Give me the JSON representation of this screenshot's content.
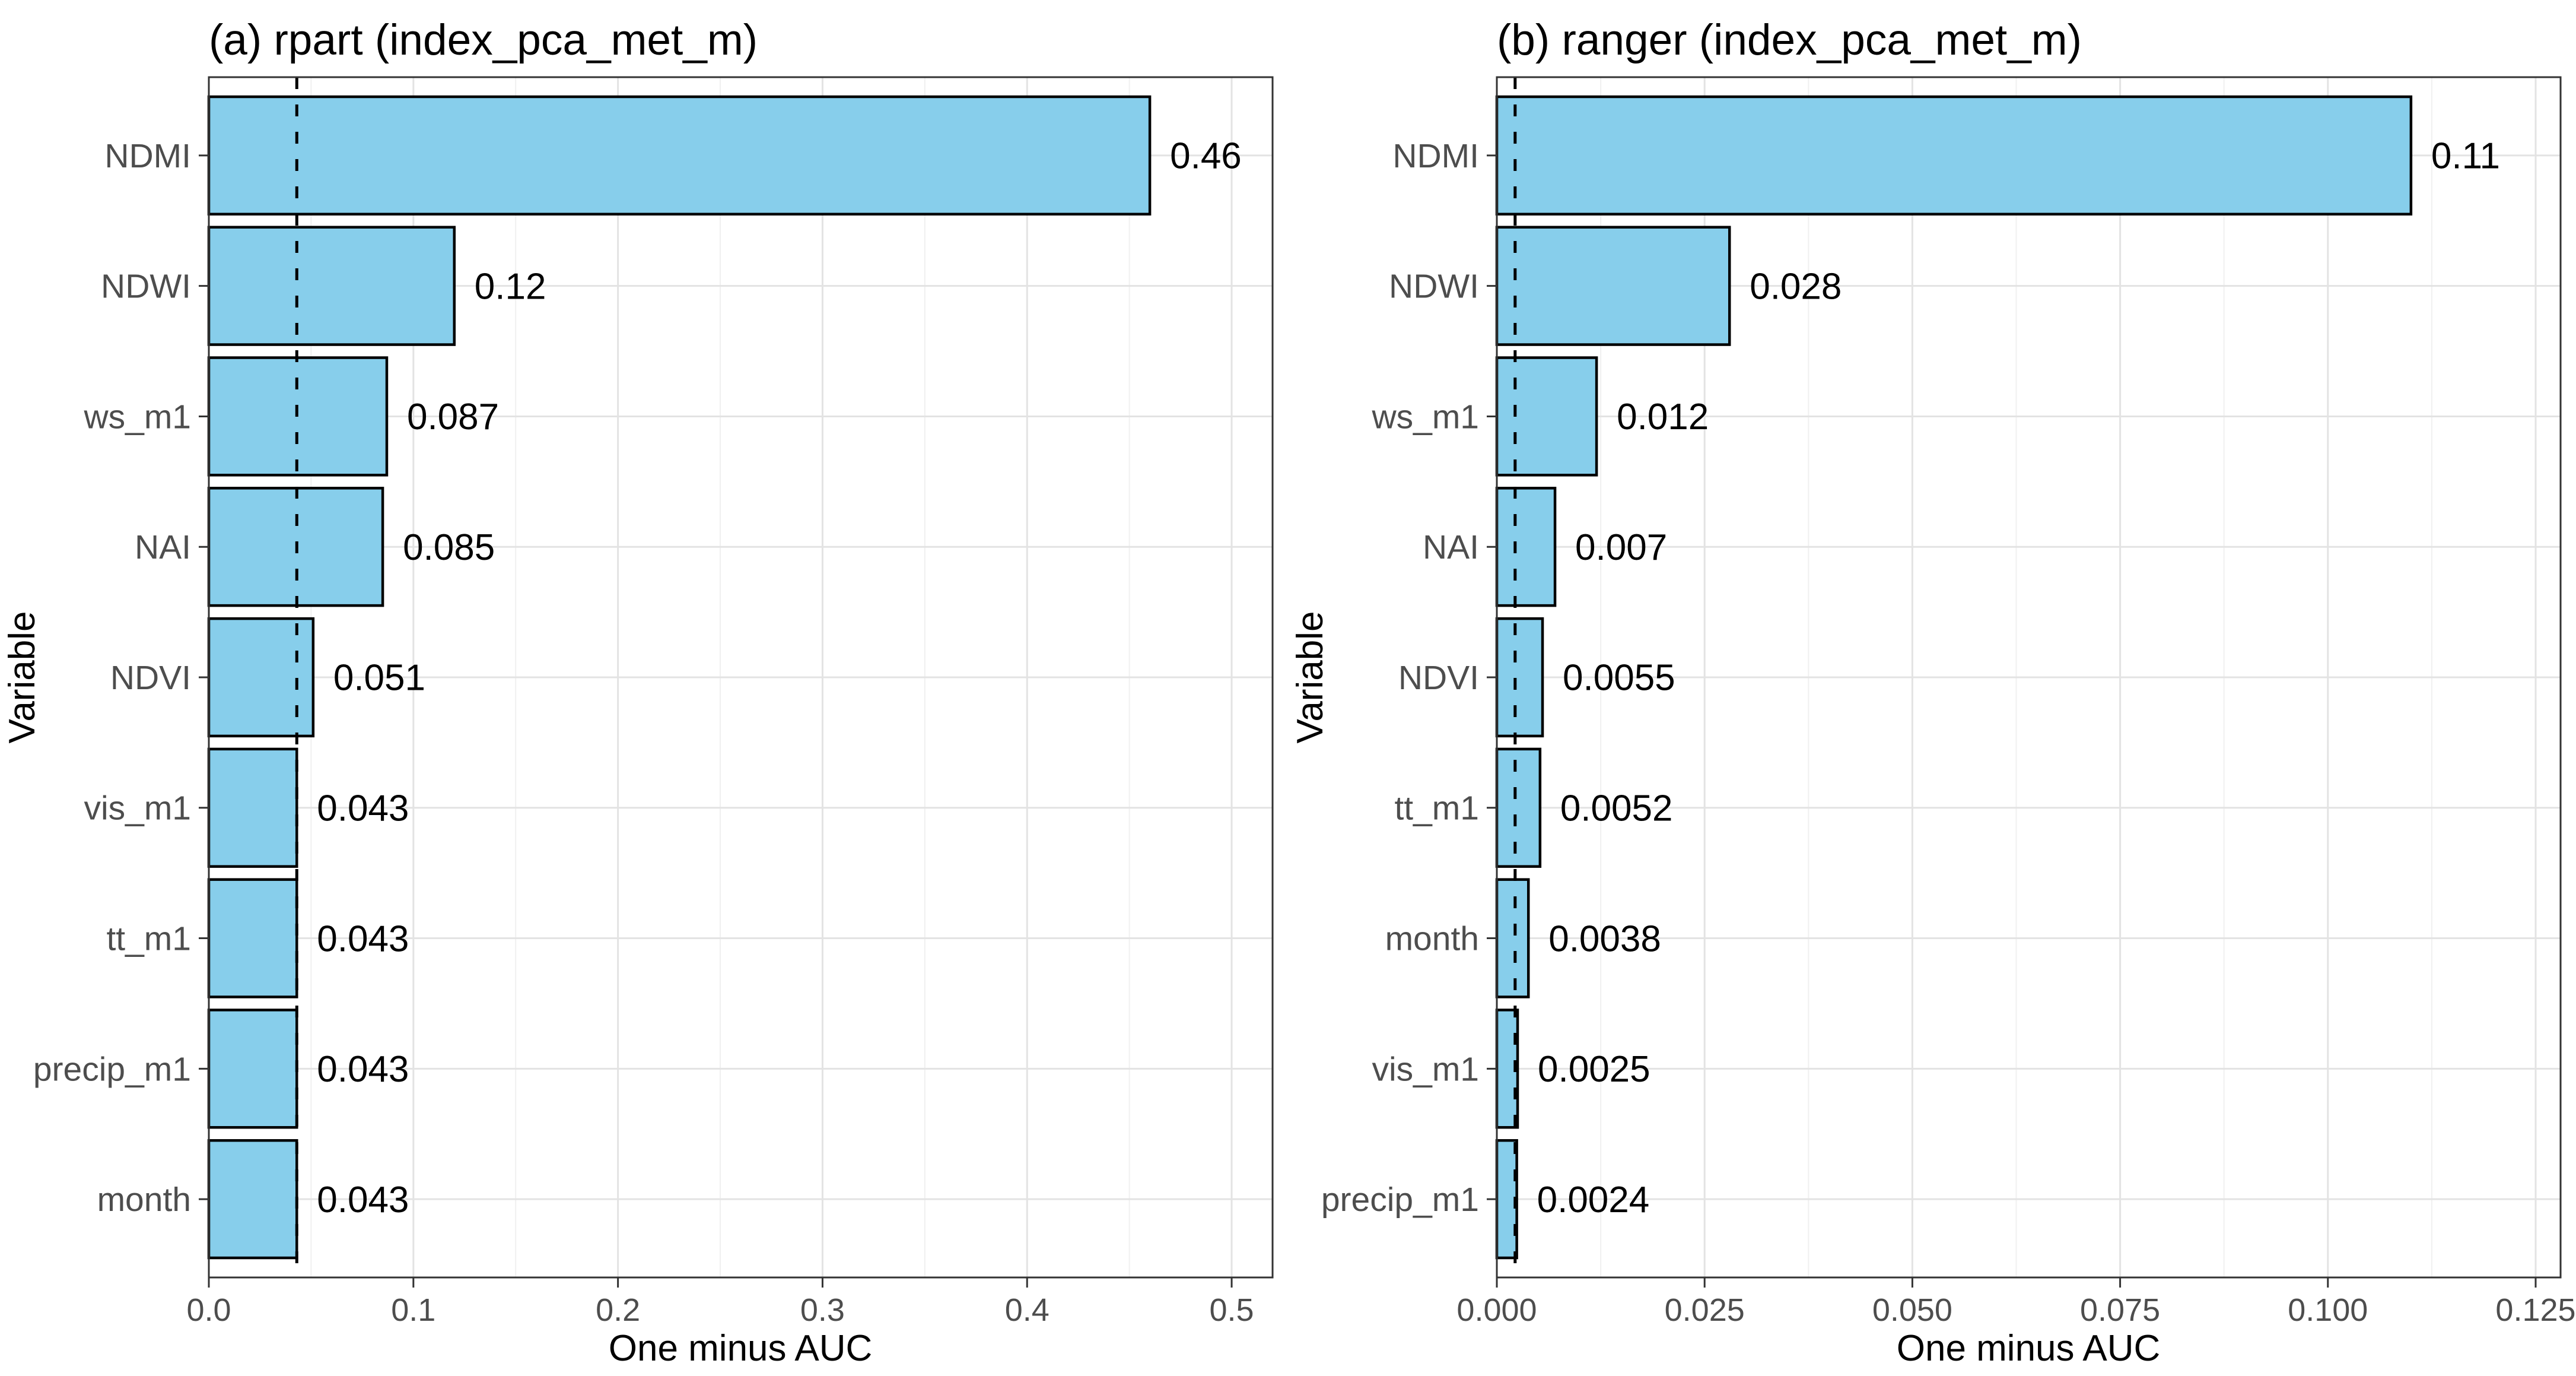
{
  "figure": {
    "description": "Two-panel horizontal bar chart of variable importance (One minus AUC)"
  },
  "style": {
    "bar_fill": "#87CEEB",
    "bar_stroke": "#000000",
    "dashed_line_color": "#000000",
    "grid_major_color": "#E3E3E3",
    "grid_minor_color": "#F0F0F0",
    "panel_border_color": "#333333",
    "tick_color": "#333333",
    "axis_text_color": "#4D4D4D"
  },
  "chart_data": [
    {
      "type": "bar",
      "orientation": "horizontal",
      "title": "(a) rpart (index_pca_met_m)",
      "xlabel": "One minus AUC",
      "ylabel": "Variable",
      "categories": [
        "NDMI",
        "NDWI",
        "ws_m1",
        "NAI",
        "NDVI",
        "vis_m1",
        "tt_m1",
        "precip_m1",
        "month"
      ],
      "values": [
        0.46,
        0.12,
        0.087,
        0.085,
        0.051,
        0.043,
        0.043,
        0.043,
        0.043
      ],
      "value_labels": [
        "0.46",
        "0.12",
        "0.087",
        "0.085",
        "0.051",
        "0.043",
        "0.043",
        "0.043",
        "0.043"
      ],
      "dashed_line_x": 0.043,
      "xlim": [
        0,
        0.52
      ],
      "x_major_ticks": [
        0.0,
        0.1,
        0.2,
        0.3,
        0.4,
        0.5
      ],
      "x_tick_labels": [
        "0.0",
        "0.1",
        "0.2",
        "0.3",
        "0.4",
        "0.5"
      ],
      "grid": true,
      "legend": "none"
    },
    {
      "type": "bar",
      "orientation": "horizontal",
      "title": "(b) ranger (index_pca_met_m)",
      "xlabel": "One minus AUC",
      "ylabel": "Variable",
      "categories": [
        "NDMI",
        "NDWI",
        "ws_m1",
        "NAI",
        "NDVI",
        "tt_m1",
        "month",
        "vis_m1",
        "precip_m1"
      ],
      "values": [
        0.11,
        0.028,
        0.012,
        0.007,
        0.0055,
        0.0052,
        0.0038,
        0.0025,
        0.0024
      ],
      "value_labels": [
        "0.11",
        "0.028",
        "0.012",
        "0.007",
        "0.0055",
        "0.0052",
        "0.0038",
        "0.0025",
        "0.0024"
      ],
      "dashed_line_x": 0.0022,
      "xlim": [
        0,
        0.128
      ],
      "x_major_ticks": [
        0.0,
        0.025,
        0.05,
        0.075,
        0.1,
        0.125
      ],
      "x_tick_labels": [
        "0.000",
        "0.025",
        "0.050",
        "0.075",
        "0.100",
        "0.125"
      ],
      "grid": true,
      "legend": "none"
    }
  ]
}
